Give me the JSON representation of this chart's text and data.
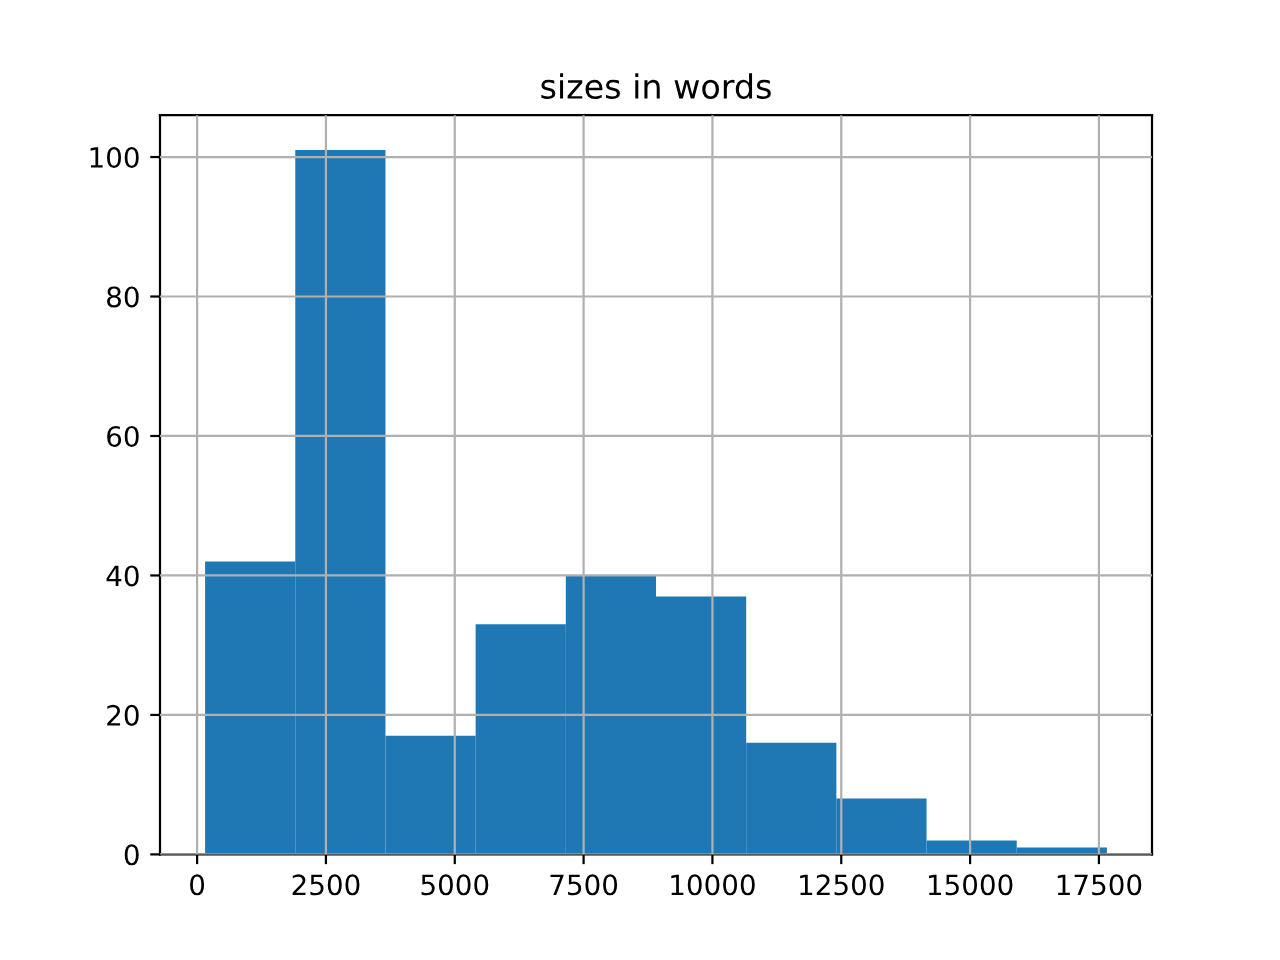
{
  "chart_data": {
    "type": "histogram",
    "title": "sizes in words",
    "bins": [
      155,
      1905,
      3655,
      5405,
      7155,
      8905,
      10655,
      12405,
      14155,
      15905,
      17655
    ],
    "values": [
      42,
      101,
      17,
      33,
      40,
      37,
      16,
      8,
      2,
      1
    ],
    "color": "#1f77b4",
    "xlim": [
      -720,
      18530
    ],
    "xticks": [
      0,
      2500,
      5000,
      7500,
      10000,
      12500,
      15000,
      17500
    ],
    "ylim": [
      0,
      106
    ],
    "yticks": [
      0,
      20,
      40,
      60,
      80,
      100
    ],
    "grid": true
  }
}
